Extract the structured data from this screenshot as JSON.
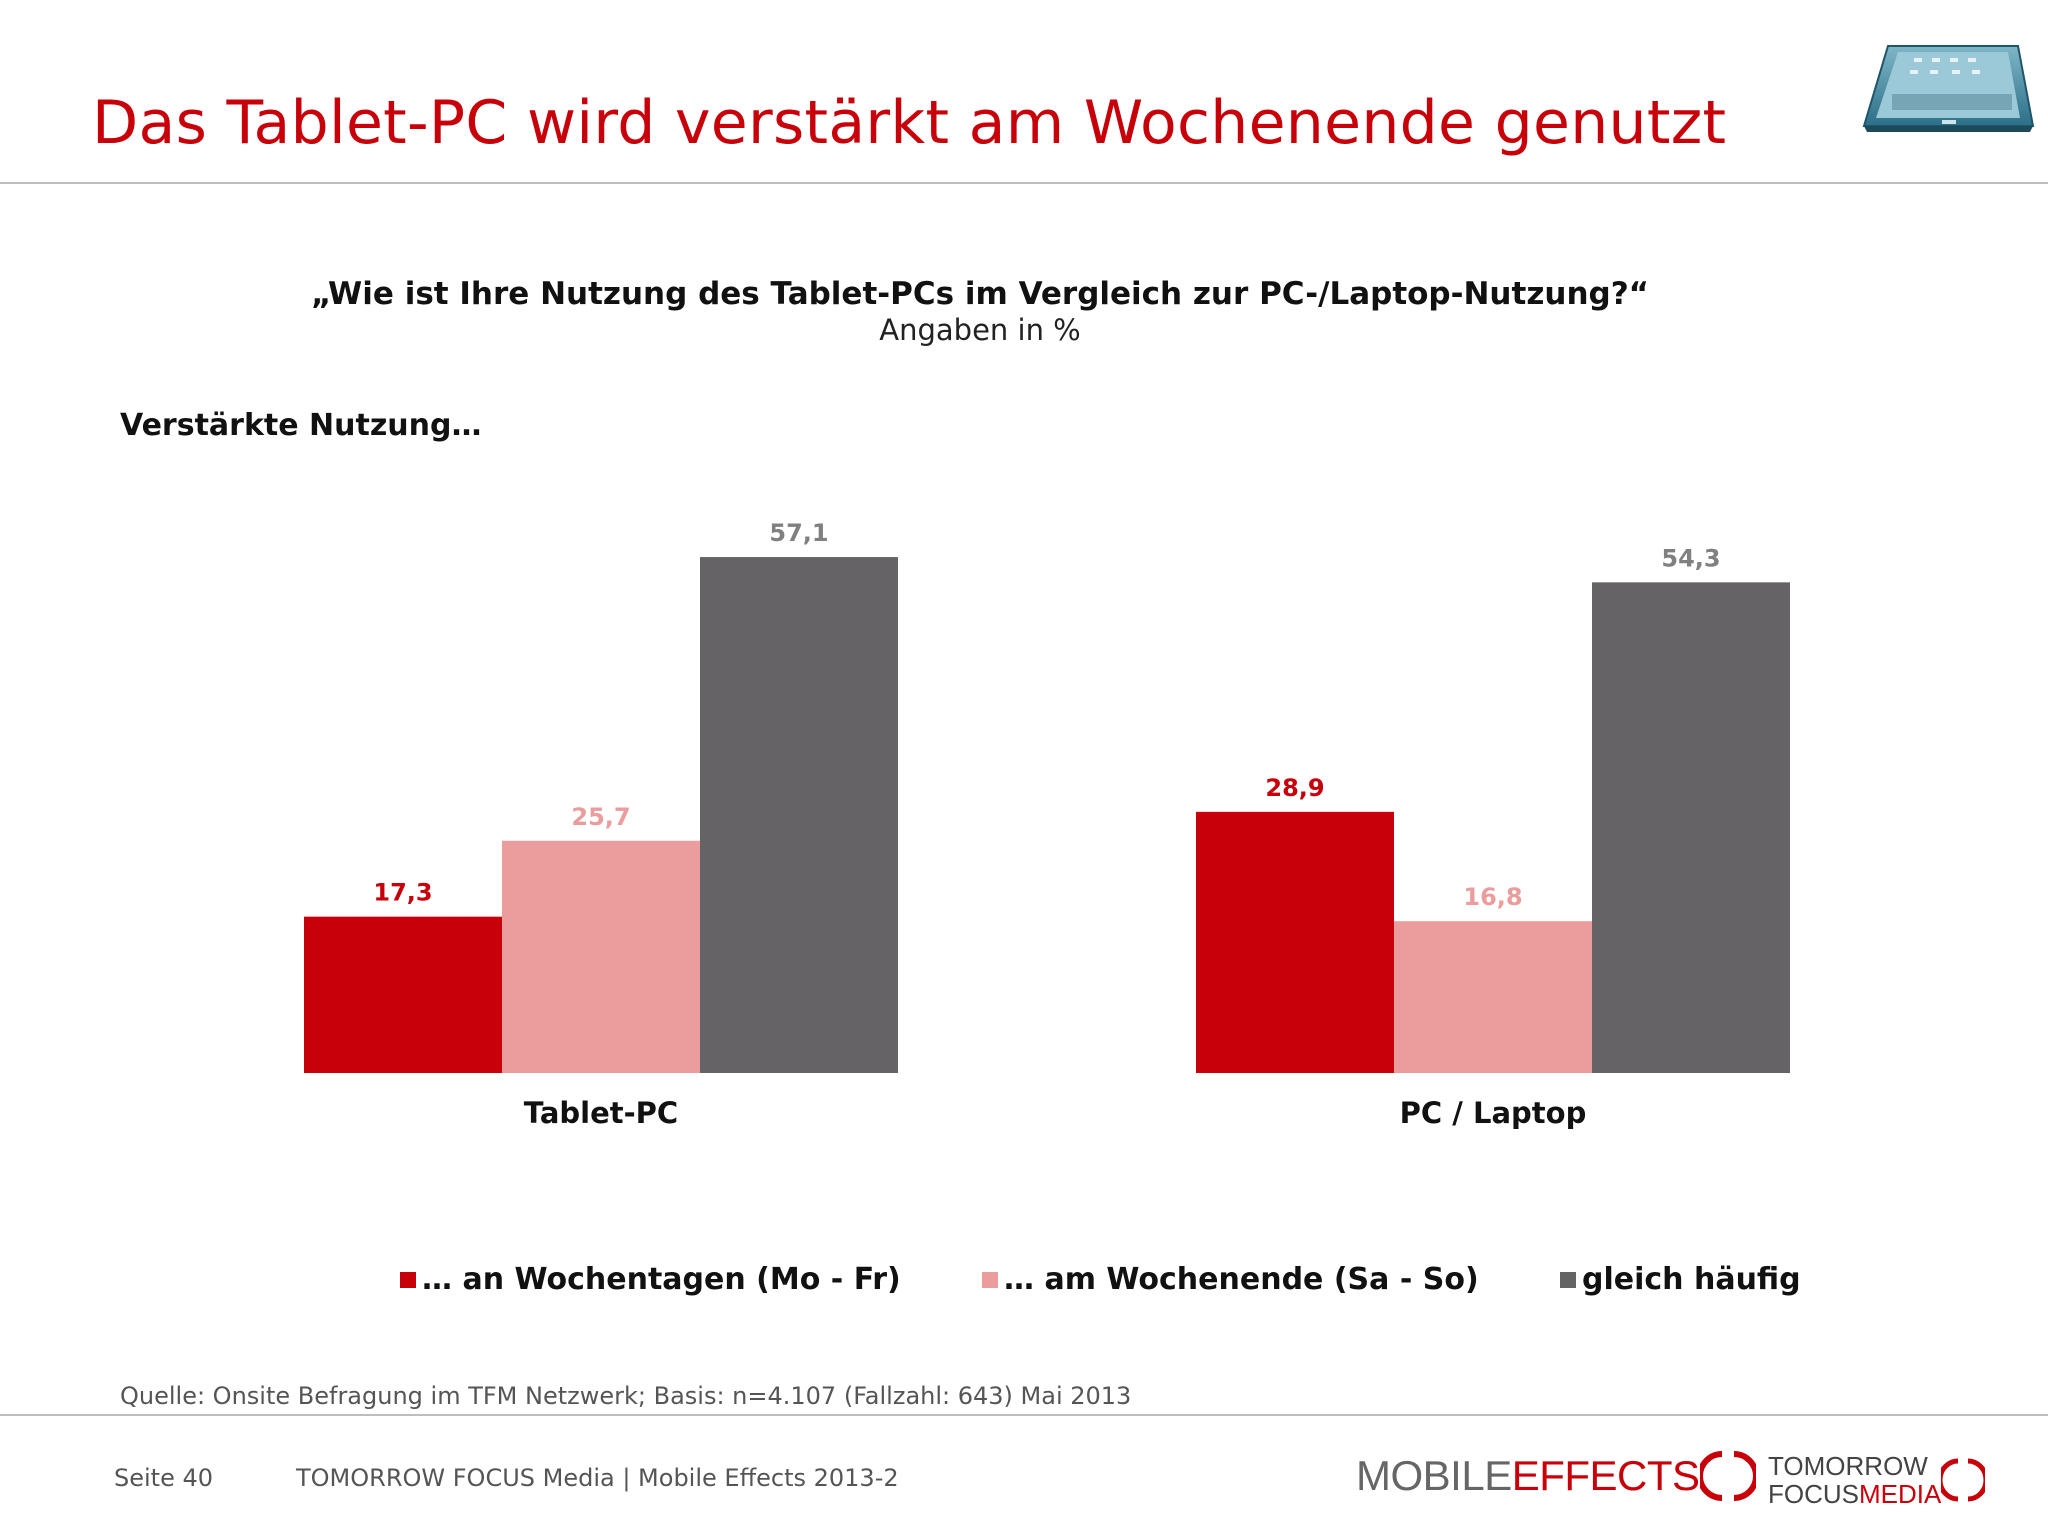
{
  "header": {
    "title": "Das Tablet-PC wird verstärkt am Wochenende genutzt"
  },
  "question": "„Wie ist Ihre Nutzung des Tablet-PCs im Vergleich zur PC-/Laptop-Nutzung?“",
  "unit_note": "Angaben in %",
  "subheading": "Verstärkte Nutzung…",
  "chart_data": {
    "type": "bar",
    "categories": [
      "Tablet-PC",
      "PC / Laptop"
    ],
    "series": [
      {
        "name": "… an Wochentagen (Mo - Fr)",
        "values": [
          17.3,
          28.9
        ],
        "labels": [
          "17,3",
          "28,9"
        ],
        "color": "#c8000a",
        "label_color": "#c8000a"
      },
      {
        "name": "… am Wochenende (Sa - So)",
        "values": [
          25.7,
          16.8
        ],
        "labels": [
          "25,7",
          "16,8"
        ],
        "color": "#eb9c9c",
        "label_color": "#eb9c9c"
      },
      {
        "name": "gleich häufig",
        "values": [
          57.1,
          54.3
        ],
        "labels": [
          "57,1",
          "54,3"
        ],
        "color": "#656366",
        "label_color": "#808080"
      }
    ],
    "ylim": [
      0,
      60
    ],
    "legend": "bottom",
    "grid": false
  },
  "source": "Quelle: Onsite Befragung im TFM Netzwerk; Basis: n=4.107 (Fallzahl: 643) Mai 2013",
  "footer": {
    "page": "Seite 40",
    "publication": "TOMORROW FOCUS Media  |  Mobile Effects 2013-2",
    "logo_mobile_effects": {
      "word1": "MOBILE",
      "word2": "EFFECTS"
    },
    "logo_tomorrow_focus": {
      "line1": "TOMORROW",
      "line2a": "FOCUS",
      "line2b": "MEDIA"
    }
  },
  "icons": {
    "tablet": "tablet-device-icon"
  }
}
